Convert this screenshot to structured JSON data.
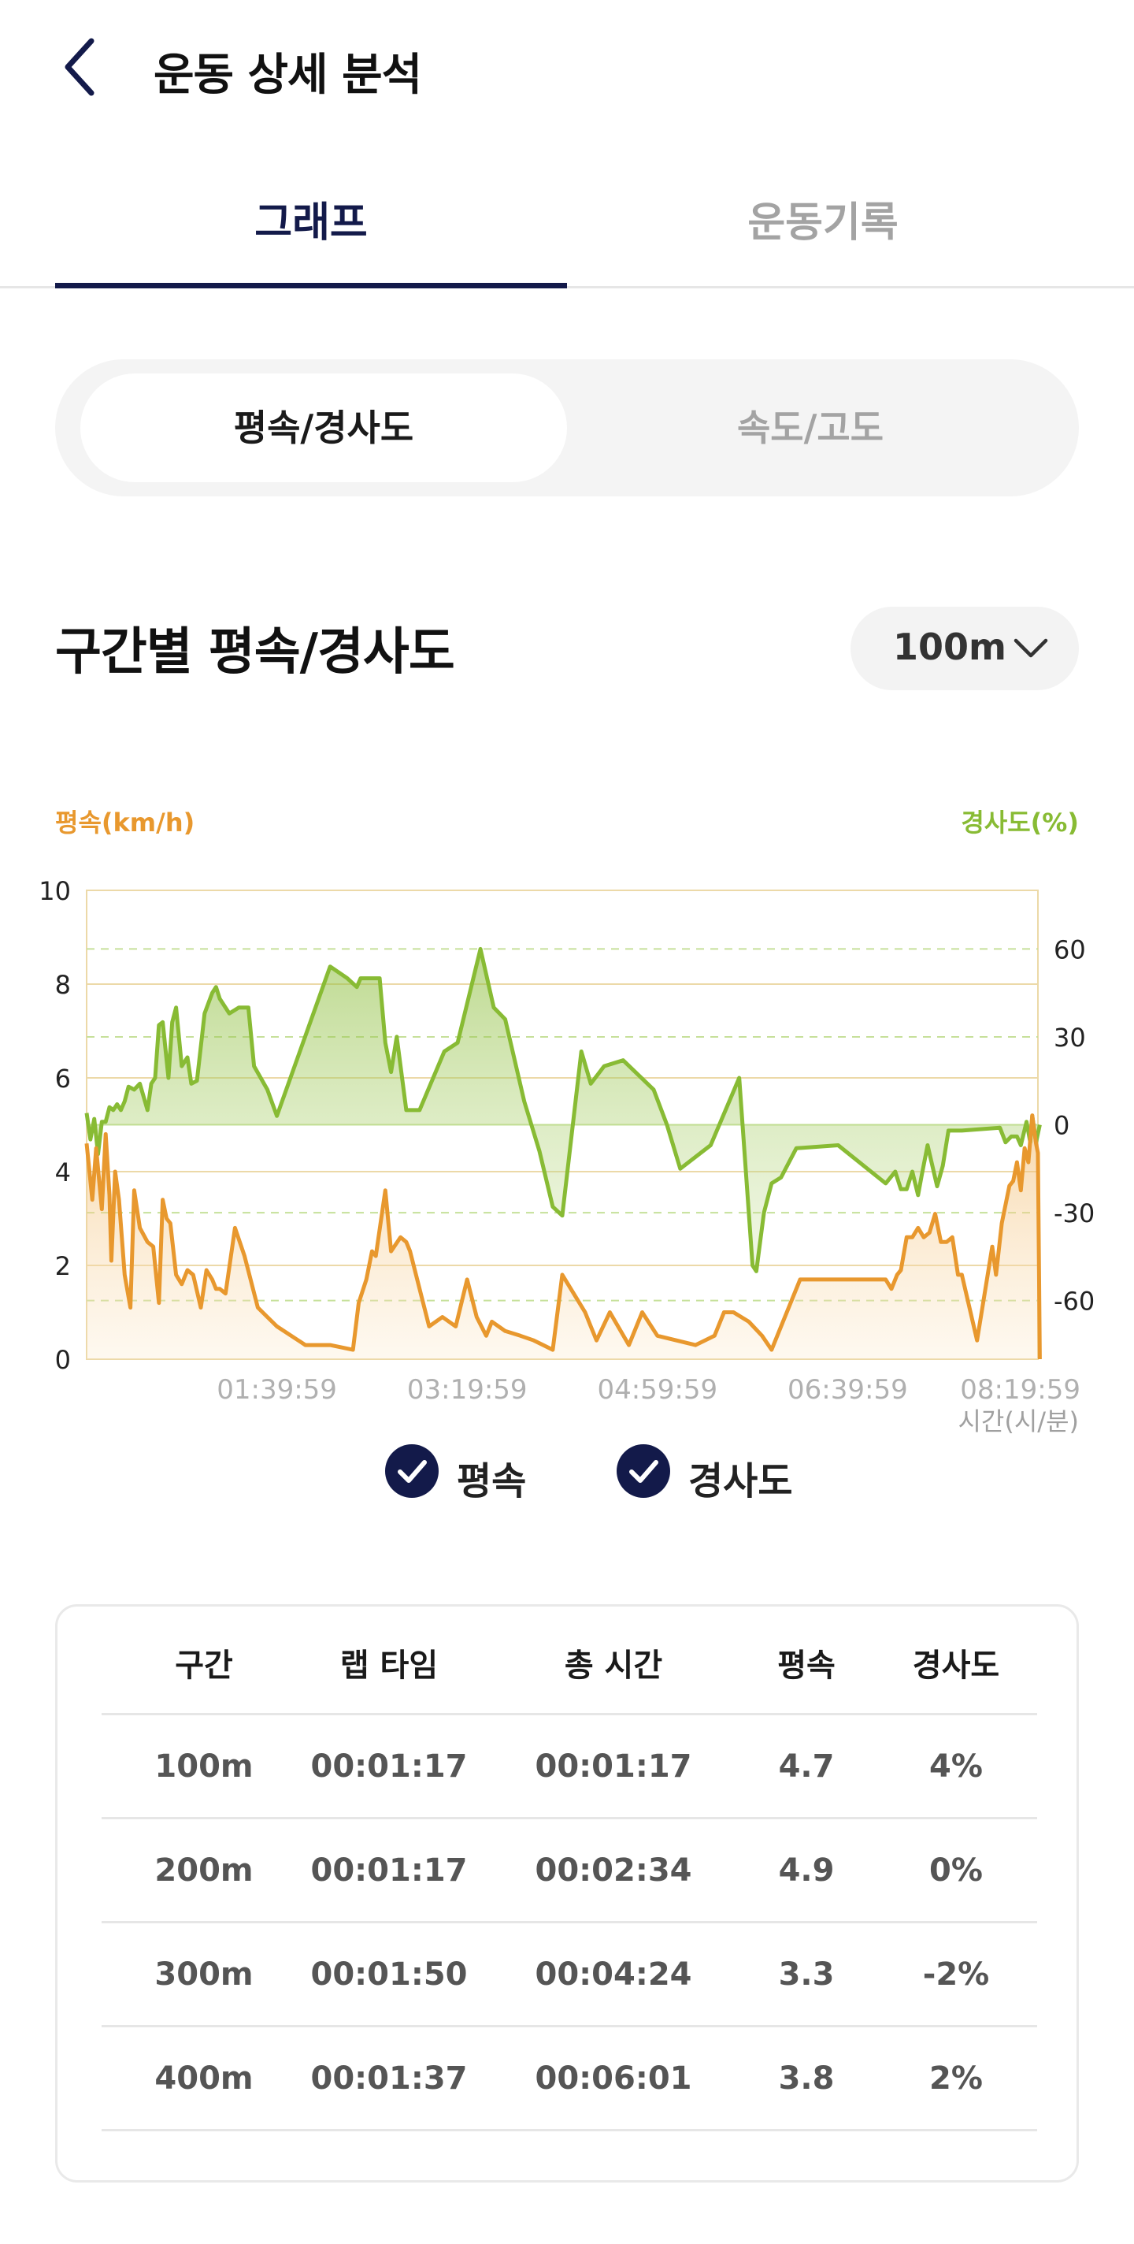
{
  "header": {
    "title": "운동 상세 분석",
    "back_icon": "chevron-left-icon"
  },
  "tabs": [
    {
      "label": "그래프",
      "active": true
    },
    {
      "label": "운동기록",
      "active": false
    }
  ],
  "segment": [
    {
      "label": "평속/경사도",
      "active": true
    },
    {
      "label": "속도/고도",
      "active": false
    }
  ],
  "section": {
    "title": "구간별 평속/경사도",
    "interval": "100m"
  },
  "colors": {
    "speed": "#e8982e",
    "slope": "#88bb34",
    "navy": "#131a4a",
    "grid": "#ecd9a8"
  },
  "chart_data": {
    "type": "line",
    "left_axis_label": "평속(km/h)",
    "right_axis_label": "경사도(%)",
    "x_axis_label": "시간(시/분)",
    "left_ticks": [
      "0",
      "2",
      "4",
      "6",
      "8",
      "10"
    ],
    "right_ticks": [
      "-60",
      "-30",
      "0",
      "30",
      "60"
    ],
    "x_ticks": [
      "01:39:59",
      "03:19:59",
      "04:59:59",
      "06:39:59",
      "08:19:59"
    ],
    "x_range_minutes": [
      0,
      500
    ],
    "ylim_left": [
      0,
      10
    ],
    "ylim_right": [
      -80,
      80
    ],
    "series": [
      {
        "name": "평속",
        "x": [
          0,
          3,
          5,
          8,
          10,
          12,
          13,
          15,
          17,
          20,
          23,
          25,
          28,
          32,
          35,
          38,
          40,
          42,
          44,
          47,
          50,
          53,
          56,
          60,
          63,
          66,
          68,
          70,
          73,
          78,
          83,
          90,
          95,
          100,
          115,
          128,
          140,
          143,
          147,
          150,
          152,
          157,
          160,
          165,
          168,
          170,
          175,
          180,
          187,
          194,
          200,
          205,
          210,
          213,
          220,
          228,
          235,
          240,
          245,
          250,
          262,
          265,
          268,
          275,
          285,
          292,
          300,
          310,
          320,
          330,
          335,
          340,
          348,
          355,
          360,
          375,
          420,
          423,
          426,
          428,
          431,
          434,
          437,
          440,
          443,
          446,
          449,
          452,
          455,
          458,
          460,
          468,
          476,
          478,
          481,
          485,
          487,
          489,
          491,
          493,
          495,
          497,
          499,
          500,
          501
        ],
        "values": [
          4.6,
          3.4,
          4.5,
          3.2,
          4.8,
          3.5,
          2.1,
          4.0,
          3.4,
          1.8,
          1.1,
          3.6,
          2.8,
          2.5,
          2.4,
          1.2,
          3.4,
          3.0,
          2.9,
          1.8,
          1.6,
          1.9,
          1.8,
          1.1,
          1.9,
          1.7,
          1.5,
          1.5,
          1.4,
          2.8,
          2.2,
          1.1,
          0.9,
          0.7,
          0.3,
          0.3,
          0.2,
          1.2,
          1.7,
          2.3,
          2.2,
          3.6,
          2.3,
          2.6,
          2.5,
          2.3,
          1.5,
          0.7,
          0.9,
          0.7,
          1.7,
          0.9,
          0.5,
          0.8,
          0.6,
          0.5,
          0.4,
          0.3,
          0.2,
          1.8,
          1.0,
          0.7,
          0.4,
          1.0,
          0.3,
          1.0,
          0.5,
          0.4,
          0.3,
          0.5,
          1.0,
          1.0,
          0.8,
          0.5,
          0.2,
          1.7,
          1.7,
          1.5,
          1.8,
          1.9,
          2.6,
          2.6,
          2.8,
          2.6,
          2.7,
          3.1,
          2.5,
          2.5,
          2.6,
          1.8,
          1.8,
          0.4,
          2.4,
          1.8,
          2.9,
          3.7,
          3.8,
          4.2,
          3.6,
          4.5,
          4.2,
          5.2,
          4.6,
          4.4,
          0.0
        ]
      },
      {
        "name": "경사도",
        "x": [
          0,
          2,
          4,
          6,
          8,
          10,
          12,
          14,
          16,
          18,
          20,
          22,
          25,
          28,
          32,
          34,
          36,
          38,
          40,
          43,
          45,
          47,
          50,
          53,
          55,
          58,
          62,
          66,
          68,
          70,
          75,
          80,
          85,
          88,
          95,
          100,
          128,
          137,
          142,
          144,
          147,
          150,
          154,
          157,
          160,
          163,
          168,
          175,
          188,
          195,
          207,
          214,
          220,
          230,
          238,
          245,
          250,
          260,
          265,
          272,
          282,
          298,
          305,
          312,
          328,
          343,
          350,
          352,
          356,
          360,
          365,
          373,
          395,
          420,
          425,
          428,
          431,
          434,
          437,
          439,
          442,
          447,
          450,
          453,
          460,
          480,
          483,
          486,
          489,
          491,
          494,
          496,
          497,
          499,
          501
        ],
        "values": [
          4,
          -5,
          2,
          -10,
          1,
          1,
          6,
          5,
          7,
          5,
          8,
          13,
          12,
          14,
          5,
          14,
          16,
          34,
          35,
          16,
          35,
          40,
          20,
          23,
          14,
          15,
          38,
          45,
          47,
          43,
          38,
          40,
          40,
          20,
          12,
          3,
          54,
          50,
          47,
          50,
          50,
          50,
          50,
          28,
          18,
          30,
          5,
          5,
          25,
          28,
          60,
          40,
          36,
          8,
          -9,
          -28,
          -31,
          25,
          14,
          20,
          22,
          12,
          0,
          -15,
          -7,
          16,
          -48,
          -50,
          -30,
          -20,
          -18,
          -8,
          -7,
          -20,
          -16,
          -22,
          -22,
          -16,
          -24,
          -17,
          -7,
          -21,
          -14,
          -2,
          -2,
          -1,
          -6,
          -4,
          -4,
          -7,
          1,
          -6,
          3,
          -6,
          0
        ]
      }
    ]
  },
  "legend": [
    {
      "label": "평속",
      "icon": "check-circle-icon"
    },
    {
      "label": "경사도",
      "icon": "check-circle-icon"
    }
  ],
  "table": {
    "headers": [
      "구간",
      "랩 타임",
      "총 시간",
      "평속",
      "경사도"
    ],
    "rows": [
      [
        "100m",
        "00:01:17",
        "00:01:17",
        "4.7",
        "4%"
      ],
      [
        "200m",
        "00:01:17",
        "00:02:34",
        "4.9",
        "0%"
      ],
      [
        "300m",
        "00:01:50",
        "00:04:24",
        "3.3",
        "-2%"
      ],
      [
        "400m",
        "00:01:37",
        "00:06:01",
        "3.8",
        "2%"
      ]
    ]
  }
}
